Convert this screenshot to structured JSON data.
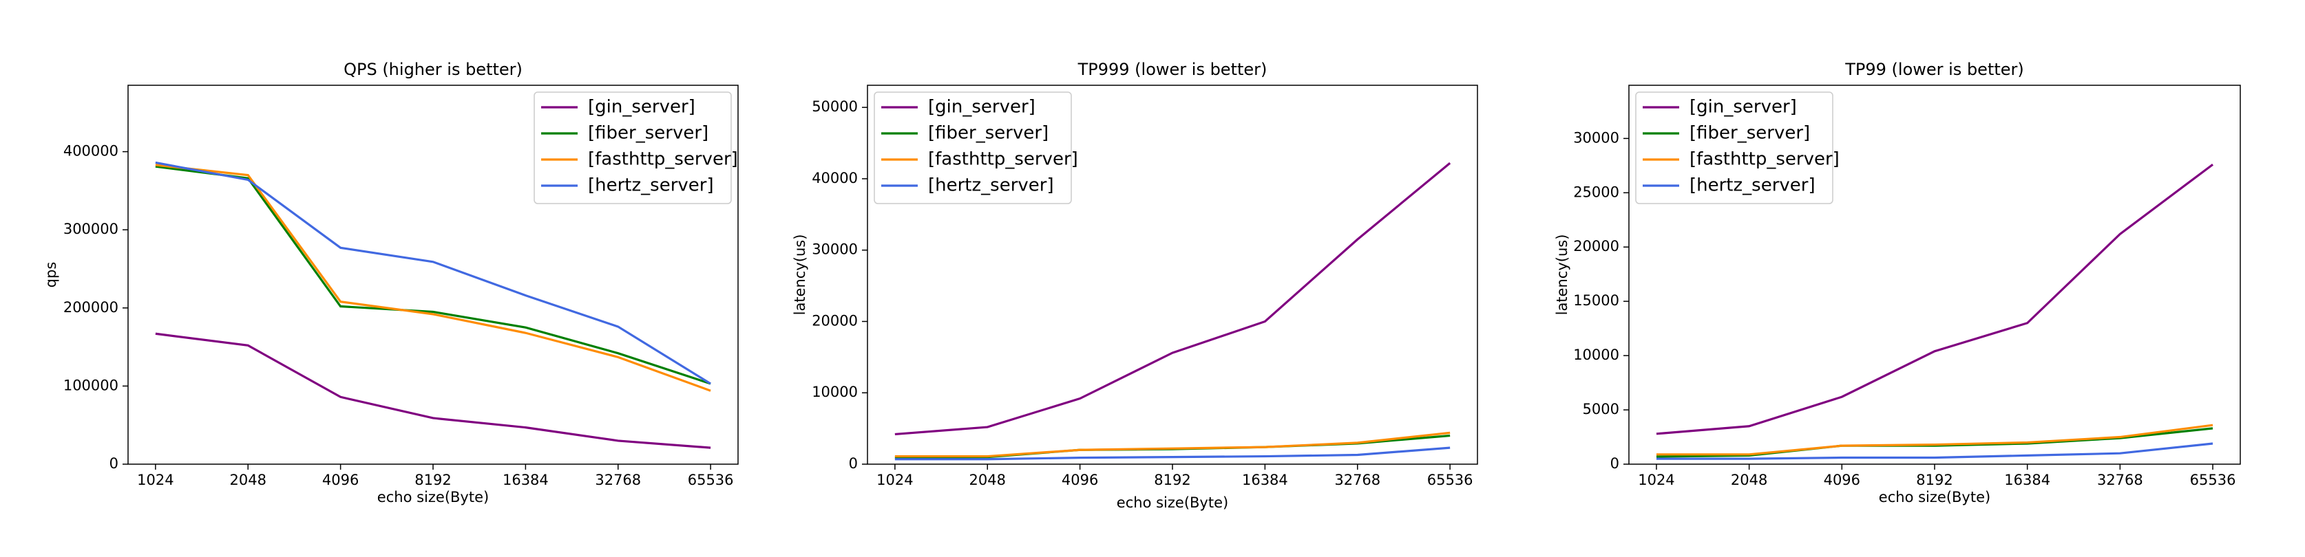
{
  "chart_data": [
    {
      "type": "line",
      "title": "QPS (higher is better)",
      "xlabel": "echo size(Byte)",
      "ylabel": "qps",
      "categories": [
        "1024",
        "2048",
        "4096",
        "8192",
        "16384",
        "32768",
        "65536"
      ],
      "series": [
        {
          "name": "[gin_server]",
          "color": "#800080",
          "values": [
            167000,
            152000,
            86000,
            59000,
            47000,
            30000,
            21000
          ]
        },
        {
          "name": "[fiber_server]",
          "color": "#008000",
          "values": [
            381000,
            366000,
            202000,
            195000,
            175000,
            142000,
            103000
          ]
        },
        {
          "name": "[fasthttp_server]",
          "color": "#ff8c00",
          "values": [
            383000,
            370000,
            208000,
            192000,
            168000,
            137000,
            94000
          ]
        },
        {
          "name": "[hertz_server]",
          "color": "#4169e1",
          "values": [
            386000,
            364000,
            277000,
            259000,
            216000,
            176000,
            103000
          ]
        }
      ],
      "ylim": [
        0,
        485000
      ],
      "yticks": [
        0,
        100000,
        200000,
        300000,
        400000
      ],
      "legend": "upper-right"
    },
    {
      "type": "line",
      "title": "TP999 (lower is better)",
      "xlabel": "echo size(Byte)",
      "ylabel": "latency(us)",
      "categories": [
        "1024",
        "2048",
        "4096",
        "8192",
        "16384",
        "32768",
        "65536"
      ],
      "series": [
        {
          "name": "[gin_server]",
          "color": "#800080",
          "values": [
            4200,
            5200,
            9200,
            15600,
            20000,
            31500,
            42200
          ]
        },
        {
          "name": "[fiber_server]",
          "color": "#008000",
          "values": [
            900,
            1000,
            2000,
            2100,
            2400,
            2900,
            4000
          ]
        },
        {
          "name": "[fasthttp_server]",
          "color": "#ff8c00",
          "values": [
            1100,
            1100,
            2000,
            2200,
            2400,
            3000,
            4400
          ]
        },
        {
          "name": "[hertz_server]",
          "color": "#4169e1",
          "values": [
            700,
            700,
            900,
            1000,
            1100,
            1300,
            2300
          ]
        }
      ],
      "ylim": [
        0,
        53100
      ],
      "yticks": [
        0,
        10000,
        20000,
        30000,
        40000,
        50000
      ],
      "legend": "upper-left"
    },
    {
      "type": "line",
      "title": "TP99 (lower is better)",
      "xlabel": "echo size(Byte)",
      "ylabel": "latency(us)",
      "categories": [
        "1024",
        "2048",
        "4096",
        "8192",
        "16384",
        "32768",
        "65536"
      ],
      "series": [
        {
          "name": "[gin_server]",
          "color": "#800080",
          "values": [
            2800,
            3500,
            6200,
            10400,
            13000,
            21200,
            27600
          ]
        },
        {
          "name": "[fiber_server]",
          "color": "#008000",
          "values": [
            700,
            800,
            1700,
            1700,
            1900,
            2400,
            3300
          ]
        },
        {
          "name": "[fasthttp_server]",
          "color": "#ff8c00",
          "values": [
            900,
            900,
            1700,
            1800,
            2000,
            2500,
            3600
          ]
        },
        {
          "name": "[hertz_server]",
          "color": "#4169e1",
          "values": [
            500,
            500,
            600,
            600,
            800,
            1000,
            1900
          ]
        }
      ],
      "ylim": [
        0,
        34900
      ],
      "yticks": [
        0,
        5000,
        10000,
        15000,
        20000,
        25000,
        30000
      ],
      "legend": "upper-left"
    }
  ]
}
